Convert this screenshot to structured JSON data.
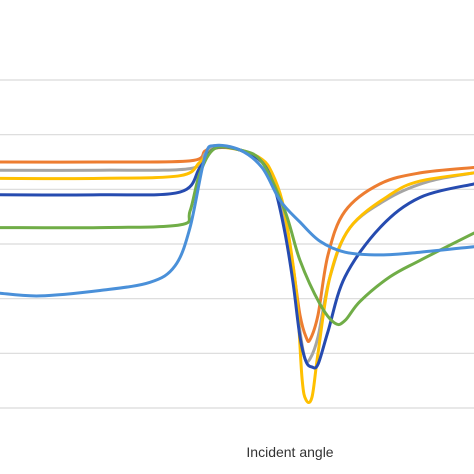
{
  "chart_data": {
    "type": "line",
    "title": "",
    "xlabel": "Incident angle",
    "ylabel": "",
    "xlim": [
      0,
      474
    ],
    "ylim": [
      0,
      6
    ],
    "grid": true,
    "gridlines": [
      1,
      2,
      3,
      4,
      5
    ],
    "colors": {
      "grid": "#d9d9d9",
      "orange": "#ed7d31",
      "gray": "#a5a5a5",
      "yellow": "#ffc000",
      "navy": "#264bb0",
      "green": "#70ad47",
      "blue": "#4a90d9"
    },
    "series": [
      {
        "color_key": "orange",
        "x": [
          0,
          100,
          190,
          205,
          215,
          240,
          262,
          275,
          285,
          293,
          300,
          306,
          310,
          318,
          328,
          345,
          380,
          420,
          474
        ],
        "y": [
          4.5,
          4.5,
          4.52,
          4.7,
          4.8,
          4.72,
          4.5,
          4.1,
          3.5,
          2.6,
          1.7,
          1.3,
          1.25,
          1.7,
          2.8,
          3.6,
          4.1,
          4.3,
          4.4
        ]
      },
      {
        "color_key": "gray",
        "x": [
          0,
          100,
          190,
          205,
          215,
          240,
          262,
          275,
          285,
          293,
          300,
          305,
          310,
          318,
          330,
          350,
          390,
          430,
          474
        ],
        "y": [
          4.35,
          4.35,
          4.38,
          4.65,
          4.8,
          4.72,
          4.5,
          4.1,
          3.4,
          2.4,
          1.4,
          0.9,
          0.9,
          1.3,
          2.4,
          3.3,
          3.85,
          4.15,
          4.3
        ]
      },
      {
        "color_key": "yellow",
        "x": [
          0,
          100,
          180,
          200,
          215,
          240,
          262,
          272,
          282,
          290,
          297,
          302,
          306,
          312,
          318,
          330,
          350,
          390,
          420,
          474
        ],
        "y": [
          4.2,
          4.2,
          4.25,
          4.5,
          4.75,
          4.72,
          4.55,
          4.3,
          3.8,
          3.0,
          2.0,
          0.55,
          0.15,
          0.2,
          1.0,
          2.4,
          3.3,
          3.9,
          4.15,
          4.3
        ]
      },
      {
        "color_key": "navy",
        "x": [
          0,
          100,
          180,
          200,
          215,
          240,
          262,
          275,
          285,
          293,
          300,
          306,
          312,
          318,
          328,
          345,
          380,
          420,
          474
        ],
        "y": [
          3.9,
          3.9,
          3.95,
          4.4,
          4.75,
          4.72,
          4.5,
          4.0,
          3.2,
          2.3,
          1.3,
          0.85,
          0.75,
          0.8,
          1.4,
          2.4,
          3.3,
          3.85,
          4.1
        ]
      },
      {
        "color_key": "green",
        "x": [
          0,
          100,
          180,
          190,
          200,
          215,
          240,
          262,
          285,
          300,
          320,
          335,
          345,
          360,
          390,
          420,
          474
        ],
        "y": [
          3.3,
          3.3,
          3.35,
          3.6,
          4.3,
          4.75,
          4.72,
          4.5,
          3.6,
          2.7,
          1.9,
          1.55,
          1.6,
          1.95,
          2.4,
          2.7,
          3.2
        ]
      },
      {
        "color_key": "blue",
        "x": [
          0,
          40,
          100,
          150,
          175,
          190,
          205,
          215,
          240,
          262,
          280,
          300,
          320,
          345,
          380,
          420,
          474
        ],
        "y": [
          2.1,
          2.05,
          2.15,
          2.3,
          2.6,
          3.3,
          4.6,
          4.8,
          4.72,
          4.4,
          3.8,
          3.4,
          3.05,
          2.85,
          2.8,
          2.85,
          2.95
        ]
      }
    ]
  }
}
